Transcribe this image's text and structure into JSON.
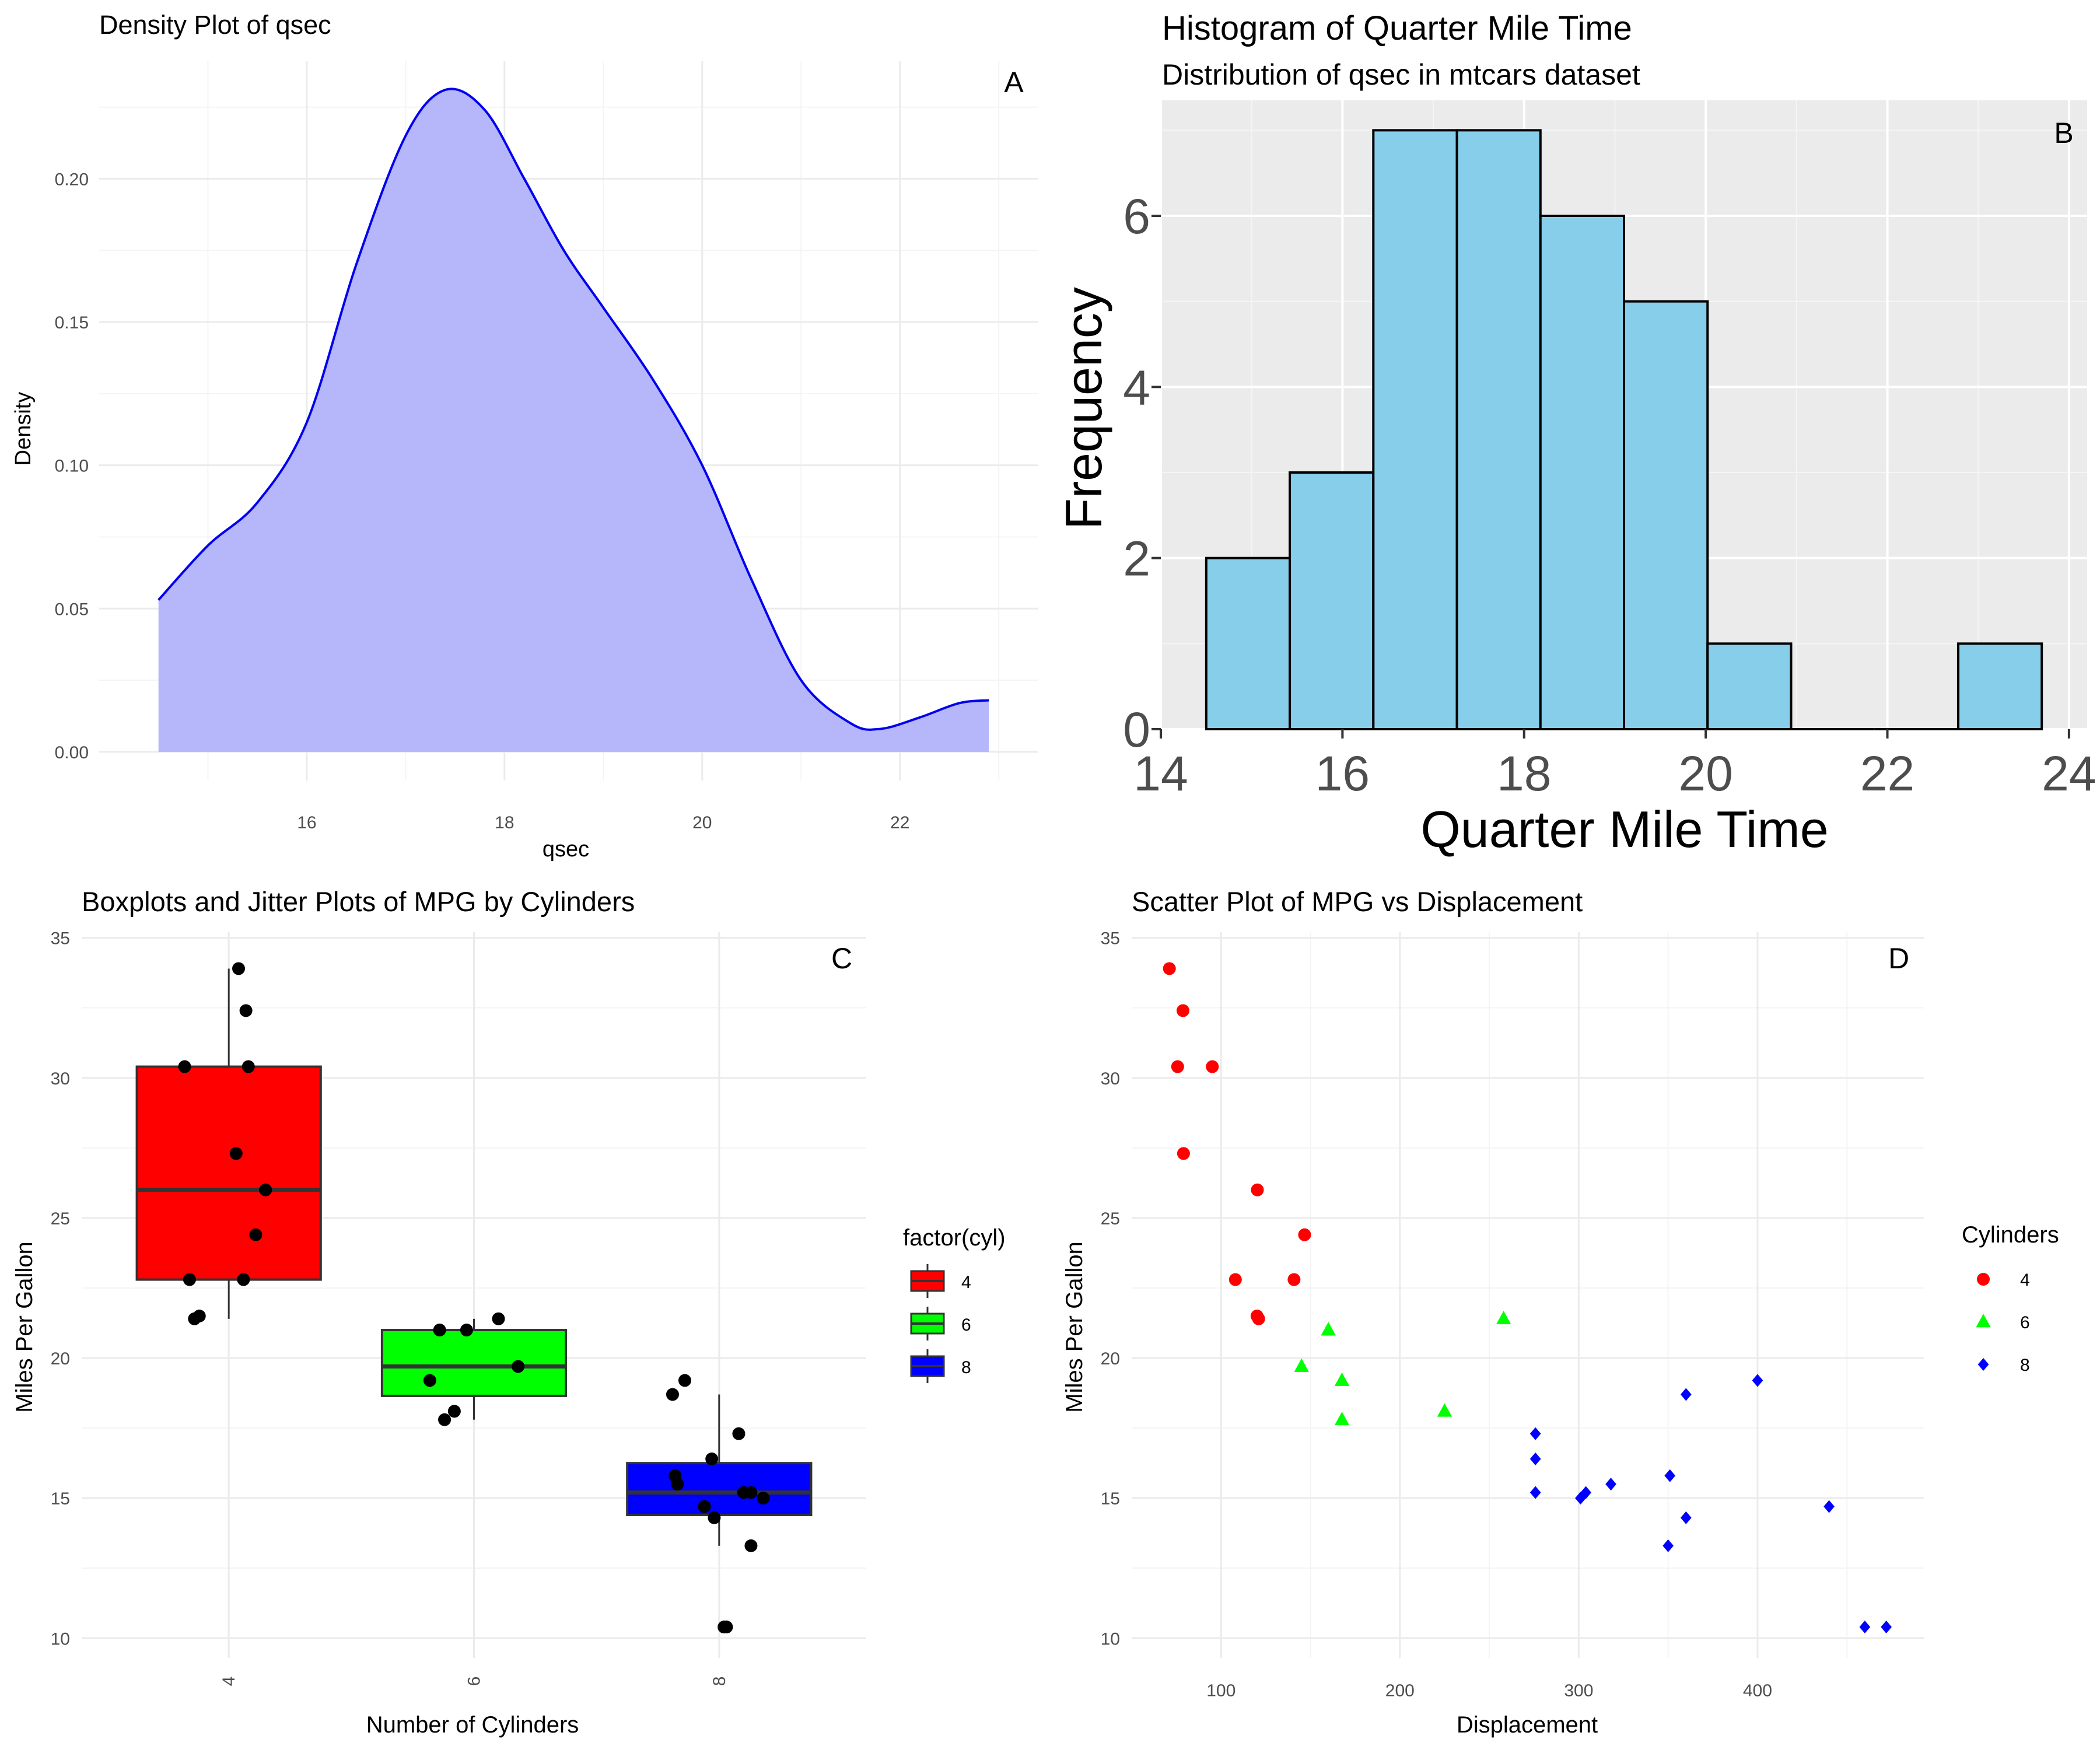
{
  "chart_data": [
    {
      "panel": "A",
      "type": "area",
      "title": "Density Plot of qsec",
      "tag": "A",
      "xlabel": "qsec",
      "ylabel": "Density",
      "xlim": [
        13.9,
        23.4
      ],
      "ylim": [
        -0.01,
        0.241
      ],
      "xticks": [
        16,
        18,
        20,
        22
      ],
      "yticks": [
        0.0,
        0.05,
        0.1,
        0.15,
        0.2
      ],
      "ytick_labels": [
        "0.00",
        "0.05",
        "0.10",
        "0.15",
        "0.20"
      ],
      "grid": true,
      "fill": "#b2b2fb",
      "line_color": "#0000ee",
      "x": [
        14.5,
        15.0,
        15.5,
        16.0,
        16.5,
        17.0,
        17.4,
        17.8,
        18.2,
        18.6,
        19.0,
        19.5,
        20.0,
        20.5,
        21.0,
        21.5,
        21.8,
        22.2,
        22.6,
        22.9
      ],
      "values": [
        0.053,
        0.072,
        0.087,
        0.115,
        0.17,
        0.215,
        0.231,
        0.224,
        0.2,
        0.175,
        0.155,
        0.13,
        0.1,
        0.06,
        0.025,
        0.01,
        0.008,
        0.012,
        0.017,
        0.018
      ]
    },
    {
      "panel": "B",
      "type": "bar",
      "title": "Histogram of Quarter Mile Time",
      "subtitle": "Distribution of qsec in mtcars dataset",
      "tag": "B",
      "xlabel": "Quarter Mile Time",
      "ylabel": "Frequency",
      "xlim": [
        14,
        24.2
      ],
      "ylim": [
        0,
        7.35
      ],
      "xticks": [
        14,
        16,
        18,
        20,
        22,
        24
      ],
      "yticks": [
        0,
        2,
        4,
        6
      ],
      "grid": true,
      "background": "#ebebeb",
      "bar_color": "#87ceeb",
      "bins": [
        {
          "x0": 14.5,
          "x1": 15.42,
          "count": 2
        },
        {
          "x0": 15.42,
          "x1": 16.34,
          "count": 3
        },
        {
          "x0": 16.34,
          "x1": 17.26,
          "count": 7
        },
        {
          "x0": 17.26,
          "x1": 18.18,
          "count": 7
        },
        {
          "x0": 18.18,
          "x1": 19.1,
          "count": 6
        },
        {
          "x0": 19.1,
          "x1": 20.02,
          "count": 5
        },
        {
          "x0": 20.02,
          "x1": 20.94,
          "count": 1
        },
        {
          "x0": 20.94,
          "x1": 21.86,
          "count": 0
        },
        {
          "x0": 21.86,
          "x1": 22.78,
          "count": 0
        },
        {
          "x0": 22.78,
          "x1": 23.7,
          "count": 1
        }
      ]
    },
    {
      "panel": "C",
      "type": "box",
      "title": "Boxplots and Jitter Plots of MPG by Cylinders",
      "tag": "C",
      "xlabel": "Number of Cylinders",
      "ylabel": "Miles Per Gallon",
      "categories": [
        "4",
        "6",
        "8"
      ],
      "ylim": [
        9.3,
        35.2
      ],
      "yticks": [
        10,
        15,
        20,
        25,
        30,
        35
      ],
      "grid": true,
      "legend_title": "factor(cyl)",
      "legend_position": "right",
      "boxes": [
        {
          "name": "4",
          "color": "#ff0000",
          "min": 21.4,
          "q1": 22.8,
          "median": 26.0,
          "q3": 30.4,
          "max": 33.9
        },
        {
          "name": "6",
          "color": "#00ff00",
          "min": 17.8,
          "q1": 18.65,
          "median": 19.7,
          "q3": 21.0,
          "max": 21.4
        },
        {
          "name": "8",
          "color": "#0000ff",
          "min": 13.3,
          "q1": 14.4,
          "median": 15.2,
          "q3": 16.25,
          "max": 18.7
        }
      ],
      "points": [
        {
          "cat": "4",
          "x": 0.82,
          "y": 30.4
        },
        {
          "cat": "4",
          "x": 1.04,
          "y": 33.9
        },
        {
          "cat": "4",
          "x": 1.07,
          "y": 32.4
        },
        {
          "cat": "4",
          "x": 1.08,
          "y": 30.4
        },
        {
          "cat": "4",
          "x": 1.03,
          "y": 27.3
        },
        {
          "cat": "4",
          "x": 1.15,
          "y": 26.0
        },
        {
          "cat": "4",
          "x": 1.11,
          "y": 24.4
        },
        {
          "cat": "4",
          "x": 0.84,
          "y": 22.8
        },
        {
          "cat": "4",
          "x": 1.06,
          "y": 22.8
        },
        {
          "cat": "4",
          "x": 0.86,
          "y": 21.4
        },
        {
          "cat": "4",
          "x": 0.88,
          "y": 21.5
        },
        {
          "cat": "6",
          "x": 1.86,
          "y": 21.0
        },
        {
          "cat": "6",
          "x": 1.97,
          "y": 21.0
        },
        {
          "cat": "6",
          "x": 2.1,
          "y": 21.4
        },
        {
          "cat": "6",
          "x": 2.18,
          "y": 19.7
        },
        {
          "cat": "6",
          "x": 1.82,
          "y": 19.2
        },
        {
          "cat": "6",
          "x": 1.92,
          "y": 18.1
        },
        {
          "cat": "6",
          "x": 1.88,
          "y": 17.8
        },
        {
          "cat": "8",
          "x": 2.81,
          "y": 18.7
        },
        {
          "cat": "8",
          "x": 2.86,
          "y": 19.2
        },
        {
          "cat": "8",
          "x": 3.08,
          "y": 17.3
        },
        {
          "cat": "8",
          "x": 2.97,
          "y": 16.4
        },
        {
          "cat": "8",
          "x": 2.82,
          "y": 15.8
        },
        {
          "cat": "8",
          "x": 2.83,
          "y": 15.5
        },
        {
          "cat": "8",
          "x": 3.1,
          "y": 15.2
        },
        {
          "cat": "8",
          "x": 3.13,
          "y": 15.2
        },
        {
          "cat": "8",
          "x": 3.18,
          "y": 15.0
        },
        {
          "cat": "8",
          "x": 2.94,
          "y": 14.7
        },
        {
          "cat": "8",
          "x": 2.98,
          "y": 14.3
        },
        {
          "cat": "8",
          "x": 3.13,
          "y": 13.3
        },
        {
          "cat": "8",
          "x": 3.02,
          "y": 10.4
        },
        {
          "cat": "8",
          "x": 3.03,
          "y": 10.4
        }
      ]
    },
    {
      "panel": "D",
      "type": "scatter",
      "title": "Scatter Plot of MPG vs Displacement",
      "tag": "D",
      "xlabel": "Displacement",
      "ylabel": "Miles Per Gallon",
      "xlim": [
        50,
        493
      ],
      "ylim": [
        9.3,
        35.2
      ],
      "xticks": [
        100,
        200,
        300,
        400
      ],
      "yticks": [
        10,
        15,
        20,
        25,
        30,
        35
      ],
      "grid": true,
      "legend_title": "Cylinders",
      "legend_position": "right",
      "series": [
        {
          "name": "4",
          "color": "#ff0000",
          "shape": "circle",
          "x": [
            71.1,
            75.7,
            78.7,
            79.0,
            95.1,
            120.3,
            108.0,
            146.7,
            140.8,
            120.1,
            121.0
          ],
          "y": [
            33.9,
            30.4,
            32.4,
            27.3,
            30.4,
            26.0,
            22.8,
            24.4,
            22.8,
            21.5,
            21.4
          ]
        },
        {
          "name": "6",
          "color": "#00ff00",
          "shape": "triangle",
          "x": [
            160.0,
            160.0,
            258.0,
            225.0,
            167.6,
            167.6,
            145.0
          ],
          "y": [
            21.0,
            21.0,
            21.4,
            18.1,
            19.2,
            17.8,
            19.7
          ]
        },
        {
          "name": "8",
          "color": "#0000ff",
          "shape": "diamond",
          "x": [
            360.0,
            360.0,
            275.8,
            275.8,
            275.8,
            472.0,
            460.0,
            440.0,
            318.0,
            304.0,
            350.0,
            400.0,
            351.0,
            301.0
          ],
          "y": [
            18.7,
            14.3,
            16.4,
            17.3,
            15.2,
            10.4,
            10.4,
            14.7,
            15.5,
            15.2,
            13.3,
            19.2,
            15.8,
            15.0
          ]
        }
      ]
    }
  ]
}
